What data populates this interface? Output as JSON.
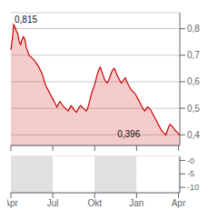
{
  "chart_data": [
    {
      "type": "area",
      "categories": [
        "Apr",
        null,
        null,
        null,
        null,
        null,
        null,
        null,
        null,
        null,
        null,
        null,
        null,
        null,
        null,
        null,
        null,
        null,
        null,
        null,
        null,
        null,
        null,
        null,
        null,
        null,
        null,
        null,
        null,
        null,
        "Jul",
        null,
        null,
        null,
        null,
        null,
        null,
        null,
        null,
        null,
        null,
        null,
        null,
        null,
        null,
        null,
        null,
        null,
        null,
        null,
        null,
        null,
        null,
        null,
        null,
        null,
        null,
        null,
        null,
        null,
        "Okt",
        null,
        null,
        null,
        null,
        null,
        null,
        null,
        null,
        null,
        null,
        null,
        null,
        null,
        null,
        null,
        null,
        null,
        null,
        null,
        null,
        null,
        null,
        null,
        null,
        null,
        null,
        null,
        null,
        null,
        "Jan",
        null,
        null,
        null,
        null,
        null,
        null,
        null,
        null,
        null,
        null,
        null,
        null,
        null,
        null,
        null,
        null,
        null,
        null,
        null,
        null,
        null,
        null,
        null,
        null,
        null,
        null,
        null,
        null,
        null,
        "Apr",
        null
      ],
      "series": [
        {
          "color": "#cc0000",
          "values": [
            0.72,
            0.76,
            0.815,
            0.805,
            0.79,
            0.78,
            0.75,
            0.74,
            0.76,
            0.77,
            0.76,
            0.73,
            0.715,
            0.7,
            0.695,
            0.69,
            0.685,
            0.68,
            0.67,
            0.665,
            0.655,
            0.645,
            0.635,
            0.62,
            0.6,
            0.585,
            0.575,
            0.565,
            0.555,
            0.545,
            0.535,
            0.525,
            0.515,
            0.505,
            0.515,
            0.525,
            0.52,
            0.51,
            0.505,
            0.5,
            0.495,
            0.49,
            0.5,
            0.51,
            0.505,
            0.495,
            0.49,
            0.485,
            0.495,
            0.505,
            0.51,
            0.505,
            0.5,
            0.495,
            0.49,
            0.5,
            0.52,
            0.54,
            0.56,
            0.575,
            0.59,
            0.61,
            0.63,
            0.645,
            0.655,
            0.64,
            0.625,
            0.61,
            0.6,
            0.595,
            0.605,
            0.62,
            0.635,
            0.645,
            0.65,
            0.64,
            0.625,
            0.615,
            0.605,
            0.595,
            0.6,
            0.61,
            0.615,
            0.6,
            0.59,
            0.58,
            0.57,
            0.565,
            0.56,
            0.555,
            0.545,
            0.535,
            0.525,
            0.515,
            0.505,
            0.495,
            0.49,
            0.5,
            0.505,
            0.5,
            0.495,
            0.485,
            0.475,
            0.465,
            0.455,
            0.445,
            0.435,
            0.425,
            0.415,
            0.41,
            0.405,
            0.4,
            0.415,
            0.43,
            0.44,
            0.435,
            0.43,
            0.42,
            0.415,
            0.41,
            0.405,
            0.396
          ]
        }
      ],
      "ylim": [
        0.36,
        0.86
      ],
      "yticks": [
        {
          "value": 0.4,
          "label": "0,4"
        },
        {
          "value": 0.5,
          "label": "0,5"
        },
        {
          "value": 0.6,
          "label": "0,6"
        },
        {
          "value": 0.7,
          "label": "0,7"
        },
        {
          "value": 0.8,
          "label": "0,8"
        }
      ],
      "grid": true,
      "tick_labels": "y",
      "annotations": [
        "0,815",
        "0,396"
      ]
    },
    {
      "type": "band",
      "categories": [
        "Apr",
        null,
        null,
        null,
        null,
        null,
        null,
        null,
        null,
        null,
        null,
        null,
        null,
        null,
        null,
        null,
        null,
        null,
        null,
        null,
        null,
        null,
        null,
        null,
        null,
        null,
        null,
        null,
        null,
        null,
        "Jul",
        null,
        null,
        null,
        null,
        null,
        null,
        null,
        null,
        null,
        null,
        null,
        null,
        null,
        null,
        null,
        null,
        null,
        null,
        null,
        null,
        null,
        null,
        null,
        null,
        null,
        null,
        null,
        null,
        null,
        "Okt",
        null,
        null,
        null,
        null,
        null,
        null,
        null,
        null,
        null,
        null,
        null,
        null,
        null,
        null,
        null,
        null,
        null,
        null,
        null,
        null,
        null,
        null,
        null,
        null,
        null,
        null,
        null,
        null,
        null,
        "Jan",
        null,
        null,
        null,
        null,
        null,
        null,
        null,
        null,
        null,
        null,
        null,
        null,
        null,
        null,
        null,
        null,
        null,
        null,
        null,
        null,
        null,
        null,
        null,
        null,
        null,
        null,
        null,
        null,
        null,
        "Apr",
        null
      ],
      "colors": [
        "#e0e0e0",
        "#ffffff",
        "#e0e0e0",
        "#ffffff",
        "#e0e0e0"
      ],
      "ylim": [
        -12,
        1.5
      ],
      "yticks": [
        -10,
        -5,
        {
          "value": 0,
          "label": "-0"
        }
      ],
      "grid": true
    }
  ]
}
